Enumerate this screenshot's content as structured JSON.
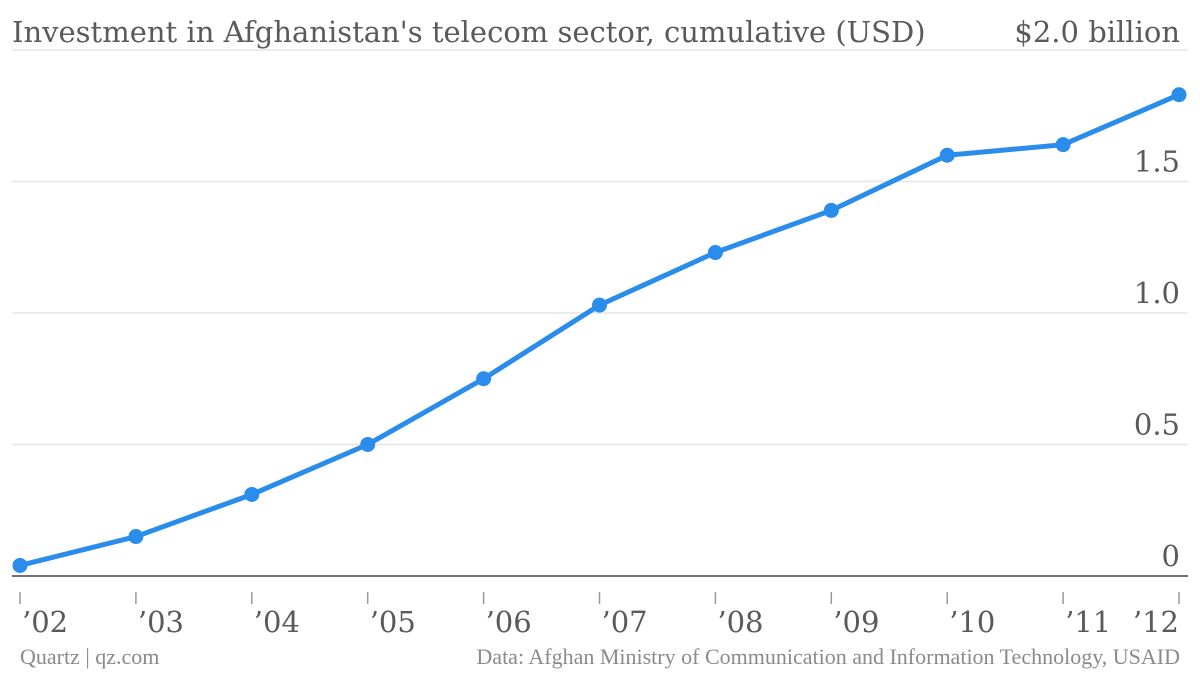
{
  "chart_data": {
    "type": "line",
    "title": "Investment in Afghanistan's telecom sector, cumulative (USD)",
    "y_top_label": "$2.0 billion",
    "x": [
      "’02",
      "’03",
      "’04",
      "’05",
      "’06",
      "’07",
      "’08",
      "’09",
      "’10",
      "’11",
      "’12"
    ],
    "series": [
      {
        "values": [
          0.04,
          0.15,
          0.31,
          0.5,
          0.75,
          1.03,
          1.23,
          1.39,
          1.6,
          1.64,
          1.83
        ]
      }
    ],
    "yticks": [
      0,
      0.5,
      1.0,
      1.5,
      2.0
    ],
    "ytick_labels": [
      "0",
      "0.5",
      "1.0",
      "1.5",
      "$2.0 billion"
    ],
    "ylim": [
      0,
      2.0
    ],
    "grid": true,
    "line_color": "#2a8ceb",
    "gridline_color": "#e6e6e6",
    "axis_color": "#444444"
  },
  "footer": {
    "source_left": "Quartz | qz.com",
    "source_right": "Data: Afghan Ministry of Communication and Information Technology, USAID"
  }
}
